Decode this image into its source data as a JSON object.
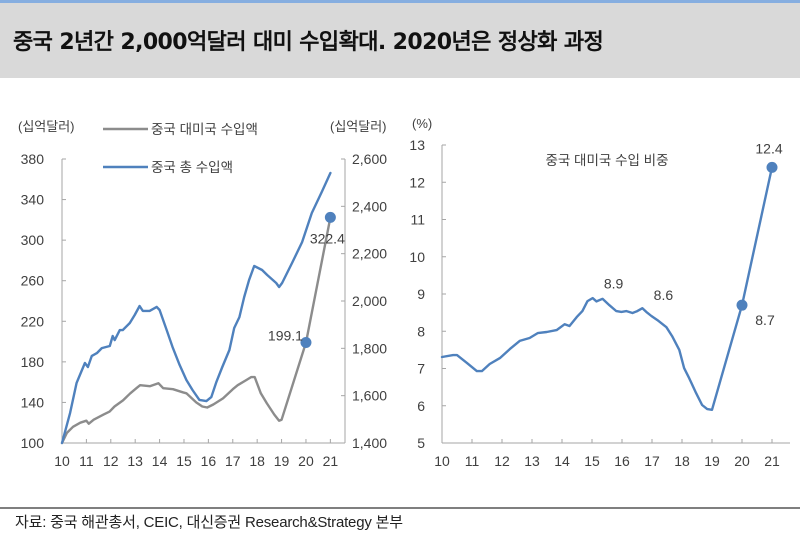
{
  "header": {
    "title": "중국 2년간 2,000억달러 대미 수입확대. 2020년은 정상화 과정"
  },
  "footer": {
    "source": "자료: 중국 해관총서, CEIC, 대신증권 Research&Strategy 본부"
  },
  "colors": {
    "title_rule": "#86aee0",
    "title_bg": "#d9d9d9",
    "series_blue": "#4f81bd",
    "series_gray": "#8c8c8c",
    "axis": "#a6a6a6",
    "text": "#404040",
    "footer_rule": "#7f7f7f"
  },
  "chart_data": [
    {
      "type": "line",
      "title": "",
      "xlabel": "",
      "x_range": [
        2010,
        2021.6
      ],
      "x_ticks": [
        2010,
        2011,
        2012,
        2013,
        2014,
        2015,
        2016,
        2017,
        2018,
        2019,
        2020,
        2021
      ],
      "x_tick_labels": [
        "10",
        "11",
        "12",
        "13",
        "14",
        "15",
        "16",
        "17",
        "18",
        "19",
        "20",
        "21"
      ],
      "y_left": {
        "label": "(십억달러)",
        "range": [
          100,
          380
        ],
        "ticks": [
          100,
          140,
          180,
          220,
          260,
          300,
          340,
          380
        ],
        "tick_labels": [
          "100",
          "140",
          "180",
          "220",
          "260",
          "300",
          "340",
          "380"
        ]
      },
      "y_right": {
        "label": "(십억달러)",
        "range": [
          1400,
          2600
        ],
        "ticks": [
          1400,
          1600,
          1800,
          2000,
          2200,
          2400,
          2600
        ],
        "tick_labels": [
          "1,400",
          "1,600",
          "1,800",
          "2,000",
          "2,200",
          "2,400",
          "2,600"
        ]
      },
      "grid": false,
      "legend": {
        "placement": "top-left",
        "items": [
          {
            "label": "중국 대미국 수입액",
            "series": 0
          },
          {
            "label": "중국 총 수입액",
            "series": 1
          }
        ]
      },
      "marker_color": "#4f81bd",
      "series": [
        {
          "name": "중국 대미국 수입액",
          "axis": "left",
          "color": "#8c8c8c",
          "x": [
            2010.0,
            2010.2,
            2010.45,
            2010.75,
            2011.0,
            2011.1,
            2011.3,
            2011.7,
            2011.95,
            2012.15,
            2012.5,
            2012.8,
            2013.05,
            2013.2,
            2013.6,
            2013.95,
            2014.15,
            2014.55,
            2014.95,
            2015.1,
            2015.5,
            2015.75,
            2015.95,
            2016.2,
            2016.6,
            2017.0,
            2017.2,
            2017.55,
            2017.75,
            2017.9,
            2018.15,
            2018.4,
            2018.7,
            2018.9,
            2019.0,
            2020.0,
            2021.0
          ],
          "y": [
            100,
            110,
            116,
            120,
            122,
            119,
            123,
            128,
            131,
            136,
            142,
            149,
            154,
            157,
            156,
            159,
            154,
            153,
            150,
            149,
            140,
            136,
            135,
            138,
            144,
            153,
            157,
            162,
            165,
            165,
            149,
            139,
            128,
            122,
            123,
            199.1,
            322.4
          ]
        },
        {
          "name": "중국 총 수입액",
          "axis": "right",
          "color": "#4f81bd",
          "x": [
            2010.0,
            2010.33,
            2010.6,
            2010.94,
            2011.06,
            2011.22,
            2011.43,
            2011.63,
            2011.96,
            2012.08,
            2012.16,
            2012.37,
            2012.49,
            2012.78,
            2012.98,
            2013.18,
            2013.31,
            2013.59,
            2013.88,
            2014.0,
            2014.29,
            2014.53,
            2014.82,
            2015.1,
            2015.35,
            2015.63,
            2015.92,
            2016.12,
            2016.33,
            2016.57,
            2016.86,
            2017.06,
            2017.27,
            2017.47,
            2017.67,
            2017.88,
            2018.2,
            2018.41,
            2018.78,
            2018.9,
            2019.02,
            2019.43,
            2019.84,
            2020.24,
            2020.65,
            2021.0
          ],
          "y": [
            1400,
            1527,
            1654,
            1738,
            1721,
            1768,
            1780,
            1801,
            1810,
            1852,
            1835,
            1877,
            1877,
            1907,
            1941,
            1979,
            1958,
            1958,
            1975,
            1962,
            1877,
            1806,
            1730,
            1666,
            1624,
            1582,
            1577,
            1594,
            1658,
            1721,
            1793,
            1886,
            1932,
            2017,
            2089,
            2148,
            2131,
            2110,
            2076,
            2059,
            2076,
            2161,
            2249,
            2372,
            2461,
            2541
          ]
        }
      ],
      "highlighted_points": [
        {
          "series": 0,
          "x": 2020,
          "y": 199.1,
          "label": "199.1",
          "label_position": "left"
        },
        {
          "series": 0,
          "x": 2021,
          "y": 322.4,
          "label": "322.4",
          "label_position": "below"
        }
      ]
    },
    {
      "type": "line",
      "title": "중국 대미국 수입 비중",
      "xlabel": "",
      "x_range": [
        2010,
        2021.6
      ],
      "x_ticks": [
        2010,
        2011,
        2012,
        2013,
        2014,
        2015,
        2016,
        2017,
        2018,
        2019,
        2020,
        2021
      ],
      "x_tick_labels": [
        "10",
        "11",
        "12",
        "13",
        "14",
        "15",
        "16",
        "17",
        "18",
        "19",
        "20",
        "21"
      ],
      "y_left": {
        "label": "(%)",
        "range": [
          5,
          13
        ],
        "ticks": [
          5,
          6,
          7,
          8,
          9,
          10,
          11,
          12,
          13
        ],
        "tick_labels": [
          "5",
          "6",
          "7",
          "8",
          "9",
          "10",
          "11",
          "12",
          "13"
        ]
      },
      "grid": false,
      "marker_color": "#4f81bd",
      "series": [
        {
          "name": "중국 대미국 수입 비중",
          "axis": "left",
          "color": "#4f81bd",
          "x": [
            2010.0,
            2010.37,
            2010.5,
            2010.83,
            2011.16,
            2011.33,
            2011.59,
            2011.93,
            2012.26,
            2012.59,
            2012.92,
            2013.19,
            2013.49,
            2013.82,
            2014.09,
            2014.25,
            2014.49,
            2014.68,
            2014.85,
            2015.02,
            2015.15,
            2015.35,
            2015.58,
            2015.81,
            2015.98,
            2016.15,
            2016.35,
            2016.51,
            2016.68,
            2016.81,
            2016.98,
            2017.18,
            2017.48,
            2017.67,
            2017.91,
            2018.07,
            2018.24,
            2018.47,
            2018.67,
            2018.84,
            2019.0,
            2020.0,
            2021.0
          ],
          "y": [
            7.31,
            7.36,
            7.36,
            7.15,
            6.93,
            6.93,
            7.12,
            7.28,
            7.52,
            7.74,
            7.82,
            7.95,
            7.98,
            8.03,
            8.19,
            8.14,
            8.38,
            8.54,
            8.81,
            8.89,
            8.8,
            8.87,
            8.7,
            8.54,
            8.52,
            8.54,
            8.49,
            8.54,
            8.62,
            8.52,
            8.41,
            8.3,
            8.11,
            7.87,
            7.5,
            7.01,
            6.74,
            6.34,
            6.02,
            5.91,
            5.89,
            8.7,
            12.4
          ]
        }
      ],
      "data_labels": [
        {
          "series": 0,
          "x": 2015.02,
          "y": 8.9,
          "label": "8.9",
          "label_position": "above-right"
        },
        {
          "series": 0,
          "x": 2016.68,
          "y": 8.6,
          "label": "8.6",
          "label_position": "above-right"
        }
      ],
      "highlighted_points": [
        {
          "series": 0,
          "x": 2020,
          "y": 8.7,
          "label": "8.7",
          "label_position": "below-right"
        },
        {
          "series": 0,
          "x": 2021,
          "y": 12.4,
          "label": "12.4",
          "label_position": "above"
        }
      ]
    }
  ]
}
